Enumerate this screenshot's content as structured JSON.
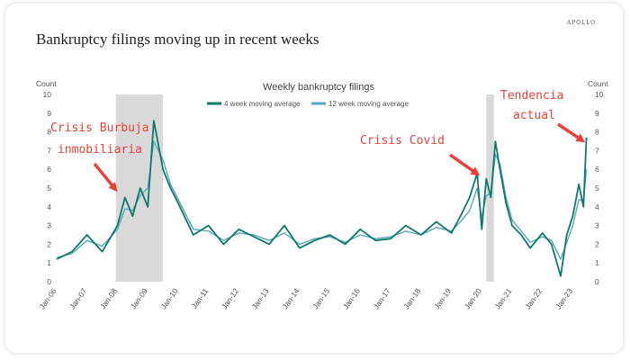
{
  "header": {
    "title": "Bankruptcy filings moving up in recent weeks",
    "brand": "APOLLO"
  },
  "chart_data": {
    "type": "line",
    "title": "Weekly bankruptcy filings",
    "ylabel_left": "Count",
    "ylabel_right": "Count",
    "ylim": [
      0,
      10
    ],
    "yticks": [
      "0",
      "1",
      "2",
      "3",
      "4",
      "5",
      "6",
      "7",
      "8",
      "9",
      "10"
    ],
    "categories": [
      "Jan-06",
      "Jan-07",
      "Jan-08",
      "Jan-09",
      "Jan-10",
      "Jan-11",
      "Jan-12",
      "Jan-13",
      "Jan-14",
      "Jan-15",
      "Jan-16",
      "Jan-17",
      "Jan-18",
      "Jan-19",
      "Jan-20",
      "Jan-21",
      "Jan-22",
      "Jan-23"
    ],
    "x": [
      2006.0,
      2006.5,
      2007.0,
      2007.5,
      2008.0,
      2008.25,
      2008.5,
      2008.75,
      2009.0,
      2009.2,
      2009.5,
      2009.75,
      2010.0,
      2010.5,
      2011.0,
      2011.5,
      2012.0,
      2012.5,
      2013.0,
      2013.5,
      2014.0,
      2014.5,
      2015.0,
      2015.5,
      2016.0,
      2016.5,
      2017.0,
      2017.5,
      2018.0,
      2018.5,
      2019.0,
      2019.3,
      2019.6,
      2019.85,
      2020.0,
      2020.15,
      2020.3,
      2020.45,
      2020.6,
      2020.8,
      2021.0,
      2021.3,
      2021.6,
      2022.0,
      2022.3,
      2022.6,
      2022.8,
      2023.0,
      2023.2,
      2023.35,
      2023.45
    ],
    "series": [
      {
        "name": "4 week moving average",
        "color": "#0d7a6a",
        "values": [
          1.2,
          1.6,
          2.5,
          1.6,
          3.0,
          4.5,
          3.5,
          5.0,
          4.0,
          8.6,
          6.0,
          5.0,
          4.2,
          2.5,
          3.0,
          2.0,
          2.8,
          2.4,
          2.0,
          3.0,
          1.8,
          2.2,
          2.5,
          2.0,
          2.8,
          2.2,
          2.3,
          3.0,
          2.5,
          3.2,
          2.6,
          3.5,
          4.5,
          5.8,
          2.8,
          5.5,
          4.5,
          7.5,
          6.0,
          4.2,
          3.0,
          2.5,
          1.8,
          2.6,
          2.0,
          0.3,
          2.5,
          3.5,
          5.2,
          4.0,
          7.7
        ]
      },
      {
        "name": "12 week moving average",
        "color": "#5aa7bd",
        "values": [
          1.3,
          1.5,
          2.2,
          1.9,
          2.8,
          3.9,
          3.8,
          4.6,
          5.0,
          7.5,
          6.5,
          5.2,
          4.4,
          2.8,
          2.7,
          2.2,
          2.6,
          2.5,
          2.2,
          2.6,
          2.0,
          2.3,
          2.4,
          2.1,
          2.5,
          2.3,
          2.4,
          2.7,
          2.5,
          2.9,
          2.7,
          3.2,
          3.8,
          5.0,
          3.4,
          4.6,
          4.7,
          6.8,
          6.3,
          4.5,
          3.3,
          2.7,
          2.1,
          2.4,
          2.2,
          1.2,
          2.1,
          3.0,
          4.4,
          4.3,
          6.0
        ]
      }
    ],
    "shaded_periods": [
      [
        2007.95,
        2009.5
      ],
      [
        2020.15,
        2020.4
      ]
    ],
    "annotations": {
      "crisis1_line1": "Crisis Burbuja",
      "crisis1_line2": "inmobiliaria",
      "covid": "Crisis Covid",
      "trend_line1": "Tendencia",
      "trend_line2": "actual"
    },
    "annotation_color": "#e8423a",
    "shade_color": "#d9d9d9",
    "grid": false
  }
}
